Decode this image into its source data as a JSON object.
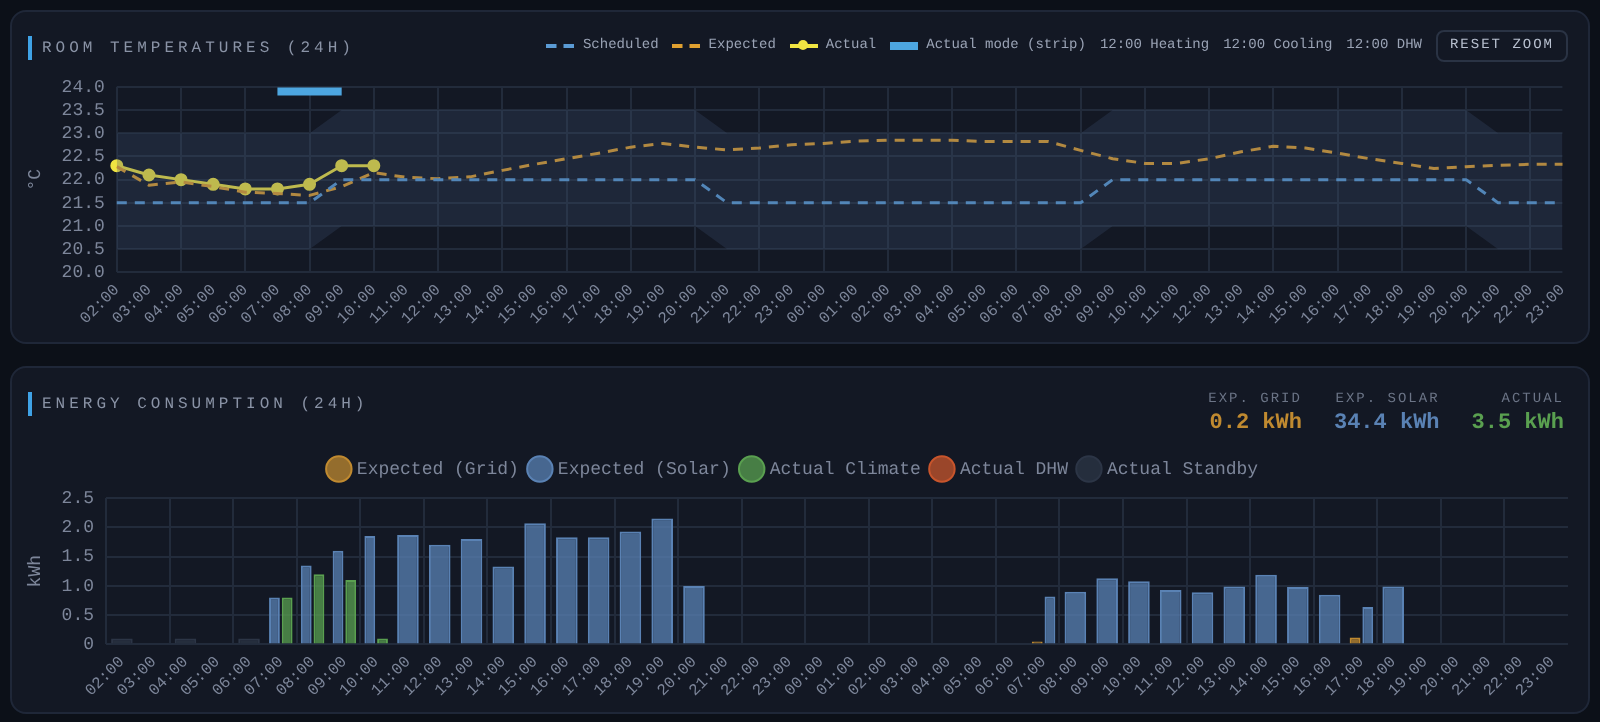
{
  "chart_data": [
    {
      "type": "line",
      "title": "ROOM TEMPERATURES (24H)",
      "ylabel": "°C",
      "categories": [
        "02:00",
        "03:00",
        "04:00",
        "05:00",
        "06:00",
        "07:00",
        "08:00",
        "09:00",
        "10:00",
        "11:00",
        "12:00",
        "13:00",
        "14:00",
        "15:00",
        "16:00",
        "17:00",
        "18:00",
        "19:00",
        "20:00",
        "21:00",
        "22:00",
        "23:00",
        "00:00",
        "01:00",
        "02:00",
        "03:00",
        "04:00",
        "05:00",
        "06:00",
        "07:00",
        "08:00",
        "09:00",
        "10:00",
        "11:00",
        "12:00",
        "13:00",
        "14:00",
        "15:00",
        "16:00",
        "17:00",
        "18:00",
        "19:00",
        "20:00",
        "21:00",
        "22:00",
        "23:00"
      ],
      "series": [
        {
          "name": "Scheduled",
          "color": "#5b9bd5",
          "line_style": "dashed",
          "marker": "none",
          "values": [
            21.5,
            21.5,
            21.5,
            21.5,
            21.5,
            21.5,
            21.5,
            22.0,
            22.0,
            22.0,
            22.0,
            22.0,
            22.0,
            22.0,
            22.0,
            22.0,
            22.0,
            22.0,
            22.0,
            21.5,
            21.5,
            21.5,
            21.5,
            21.5,
            21.5,
            21.5,
            21.5,
            21.5,
            21.5,
            21.5,
            21.5,
            22.0,
            22.0,
            22.0,
            22.0,
            22.0,
            22.0,
            22.0,
            22.0,
            22.0,
            22.0,
            22.0,
            22.0,
            21.5,
            21.5,
            21.5
          ],
          "upper": [
            23.0,
            23.0,
            23.0,
            23.0,
            23.0,
            23.0,
            23.0,
            23.5,
            23.5,
            23.5,
            23.5,
            23.5,
            23.5,
            23.5,
            23.5,
            23.5,
            23.5,
            23.5,
            23.5,
            23.0,
            23.0,
            23.0,
            23.0,
            23.0,
            23.0,
            23.0,
            23.0,
            23.0,
            23.0,
            23.0,
            23.0,
            23.5,
            23.5,
            23.5,
            23.5,
            23.5,
            23.5,
            23.5,
            23.5,
            23.5,
            23.5,
            23.5,
            23.5,
            23.0,
            23.0,
            23.0
          ],
          "lower": [
            20.5,
            20.5,
            20.5,
            20.5,
            20.5,
            20.5,
            20.5,
            21.0,
            21.0,
            21.0,
            21.0,
            21.0,
            21.0,
            21.0,
            21.0,
            21.0,
            21.0,
            21.0,
            21.0,
            20.5,
            20.5,
            20.5,
            20.5,
            20.5,
            20.5,
            20.5,
            20.5,
            20.5,
            20.5,
            20.5,
            20.5,
            21.0,
            21.0,
            21.0,
            21.0,
            21.0,
            21.0,
            21.0,
            21.0,
            21.0,
            21.0,
            21.0,
            21.0,
            20.5,
            20.5,
            20.5
          ]
        },
        {
          "name": "Expected",
          "color": "#e0a030",
          "line_style": "dashed",
          "marker": "none",
          "values": [
            22.28,
            21.88,
            21.95,
            21.85,
            21.73,
            21.7,
            21.66,
            21.85,
            22.15,
            22.05,
            22.02,
            22.06,
            22.2,
            22.33,
            22.45,
            22.57,
            22.7,
            22.78,
            22.7,
            22.64,
            22.68,
            22.75,
            22.78,
            22.83,
            22.85,
            22.85,
            22.85,
            22.82,
            22.82,
            22.82,
            22.63,
            22.45,
            22.35,
            22.35,
            22.45,
            22.6,
            22.72,
            22.68,
            22.57,
            22.45,
            22.35,
            22.24,
            22.28,
            22.31,
            22.33,
            22.33
          ]
        },
        {
          "name": "Actual",
          "color": "#f0e442",
          "line_style": "solid",
          "marker": "circle",
          "values": [
            22.3,
            22.1,
            22.0,
            21.9,
            21.8,
            21.8,
            21.9,
            22.3,
            22.3,
            null,
            null,
            null,
            null,
            null,
            null,
            null,
            null,
            null,
            null,
            null,
            null,
            null,
            null,
            null,
            null,
            null,
            null,
            null,
            null,
            null,
            null,
            null,
            null,
            null,
            null,
            null,
            null,
            null,
            null,
            null,
            null,
            null,
            null,
            null,
            null,
            null
          ]
        },
        {
          "name": "Actual mode (strip)",
          "color": "#4da6e0",
          "line_style": "solid",
          "marker": "none",
          "values": [
            null,
            null,
            null,
            null,
            null,
            23.9,
            23.9,
            23.9,
            null,
            null,
            null,
            null,
            null,
            null,
            null,
            null,
            null,
            null,
            null,
            null,
            null,
            null,
            null,
            null,
            null,
            null,
            null,
            null,
            null,
            null,
            null,
            null,
            null,
            null,
            null,
            null,
            null,
            null,
            null,
            null,
            null,
            null,
            null,
            null,
            null,
            null
          ]
        }
      ],
      "ylim": [
        20,
        24
      ],
      "yticks": [
        {
          "value": 20,
          "label": "20.0"
        },
        {
          "value": 20.5,
          "label": "20.5"
        },
        {
          "value": 21,
          "label": "21.0"
        },
        {
          "value": 21.5,
          "label": "21.5"
        },
        {
          "value": 22,
          "label": "22.0"
        },
        {
          "value": 22.5,
          "label": "22.5"
        },
        {
          "value": 23,
          "label": "23.0"
        },
        {
          "value": 23.5,
          "label": "23.5"
        },
        {
          "value": 24,
          "label": "24.0"
        }
      ],
      "grid": true,
      "legend": "top right",
      "annotations": [
        "12:00 Heating",
        "12:00 Cooling",
        "12:00 DHW",
        "RESET ZOOM"
      ]
    },
    {
      "type": "bar",
      "title": "ENERGY CONSUMPTION (24H)",
      "ylabel": "kWh",
      "categories": [
        "02:00",
        "03:00",
        "04:00",
        "05:00",
        "06:00",
        "07:00",
        "08:00",
        "09:00",
        "10:00",
        "11:00",
        "12:00",
        "13:00",
        "14:00",
        "15:00",
        "16:00",
        "17:00",
        "18:00",
        "19:00",
        "20:00",
        "21:00",
        "22:00",
        "23:00",
        "00:00",
        "01:00",
        "02:00",
        "03:00",
        "04:00",
        "05:00",
        "06:00",
        "07:00",
        "08:00",
        "09:00",
        "10:00",
        "11:00",
        "12:00",
        "13:00",
        "14:00",
        "15:00",
        "16:00",
        "17:00",
        "18:00",
        "19:00",
        "20:00",
        "21:00",
        "22:00",
        "23:00"
      ],
      "series": [
        {
          "name": "Expected (Grid)",
          "color": "#c08a30",
          "values": [
            null,
            null,
            null,
            null,
            null,
            null,
            null,
            null,
            null,
            null,
            null,
            null,
            null,
            null,
            null,
            null,
            null,
            null,
            null,
            null,
            null,
            null,
            null,
            null,
            null,
            null,
            null,
            null,
            null,
            0.05,
            null,
            null,
            null,
            null,
            null,
            null,
            null,
            null,
            null,
            0.12,
            null,
            null,
            null,
            null,
            null,
            null
          ]
        },
        {
          "name": "Expected (Solar)",
          "color": "#5a82b4",
          "values": [
            null,
            null,
            null,
            null,
            null,
            0.8,
            1.35,
            1.6,
            1.85,
            1.87,
            1.7,
            1.8,
            1.33,
            2.07,
            1.83,
            1.83,
            1.93,
            2.15,
            1.0,
            null,
            null,
            null,
            null,
            null,
            null,
            null,
            null,
            null,
            null,
            0.82,
            0.9,
            1.13,
            1.08,
            0.93,
            0.89,
            0.99,
            1.19,
            0.98,
            0.85,
            0.64,
            0.99,
            null,
            null,
            null,
            null,
            null
          ]
        },
        {
          "name": "Actual Climate",
          "color": "#5aa050",
          "values": [
            null,
            null,
            null,
            null,
            null,
            0.8,
            1.2,
            1.1,
            0.1,
            null,
            null,
            null,
            null,
            null,
            null,
            null,
            null,
            null,
            null,
            null,
            null,
            null,
            null,
            null,
            null,
            null,
            null,
            null,
            null,
            null,
            null,
            null,
            null,
            null,
            null,
            null,
            null,
            null,
            null,
            null,
            null,
            null,
            null,
            null,
            null,
            null
          ]
        },
        {
          "name": "Actual DHW",
          "color": "#c8552c",
          "values": [
            null,
            null,
            null,
            null,
            null,
            null,
            null,
            null,
            null,
            null,
            null,
            null,
            null,
            null,
            null,
            null,
            null,
            null,
            null,
            null,
            null,
            null,
            null,
            null,
            null,
            null,
            null,
            null,
            null,
            null,
            null,
            null,
            null,
            null,
            null,
            null,
            null,
            null,
            null,
            null,
            null,
            null,
            null,
            null,
            null,
            null
          ]
        },
        {
          "name": "Actual Standby",
          "color": "#2c3546",
          "values": [
            0.1,
            null,
            0.1,
            null,
            0.1,
            null,
            null,
            null,
            null,
            null,
            null,
            null,
            null,
            null,
            null,
            null,
            null,
            null,
            null,
            null,
            null,
            null,
            null,
            null,
            null,
            null,
            null,
            null,
            null,
            null,
            null,
            null,
            null,
            null,
            null,
            null,
            null,
            null,
            null,
            null,
            null,
            null,
            null,
            null,
            null,
            null
          ]
        }
      ],
      "ylim": [
        0,
        2.5
      ],
      "yticks": [
        0,
        0.5,
        {
          "value": 1,
          "label": "1.0"
        },
        1.5,
        {
          "value": 2,
          "label": "2.0"
        },
        2.5
      ],
      "grid": true,
      "legend": "top",
      "annotations": [
        "EXP. GRID",
        "0.2 kWh",
        "EXP. SOLAR",
        "34.4 kWh",
        "ACTUAL",
        "3.5 kWh"
      ]
    }
  ]
}
